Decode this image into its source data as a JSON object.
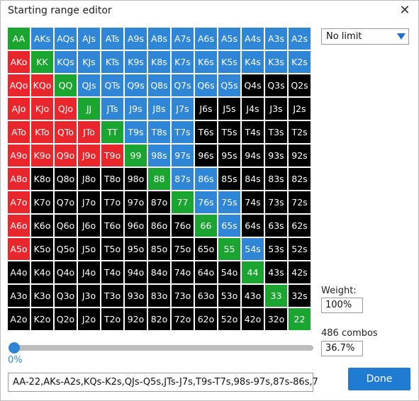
{
  "window": {
    "title": "Starting range editor"
  },
  "grid": {
    "rows": [
      [
        "AA",
        "AKs",
        "AQs",
        "AJs",
        "ATs",
        "A9s",
        "A8s",
        "A7s",
        "A6s",
        "A5s",
        "A4s",
        "A3s",
        "A2s"
      ],
      [
        "AKo",
        "KK",
        "KQs",
        "KJs",
        "KTs",
        "K9s",
        "K8s",
        "K7s",
        "K6s",
        "K5s",
        "K4s",
        "K3s",
        "K2s"
      ],
      [
        "AQo",
        "KQo",
        "QQ",
        "QJs",
        "QTs",
        "Q9s",
        "Q8s",
        "Q7s",
        "Q6s",
        "Q5s",
        "Q4s",
        "Q3s",
        "Q2s"
      ],
      [
        "AJo",
        "KJo",
        "QJo",
        "JJ",
        "JTs",
        "J9s",
        "J8s",
        "J7s",
        "J6s",
        "J5s",
        "J4s",
        "J3s",
        "J2s"
      ],
      [
        "ATo",
        "KTo",
        "QTo",
        "JTo",
        "TT",
        "T9s",
        "T8s",
        "T7s",
        "T6s",
        "T5s",
        "T4s",
        "T3s",
        "T2s"
      ],
      [
        "A9o",
        "K9o",
        "Q9o",
        "J9o",
        "T9o",
        "99",
        "98s",
        "97s",
        "96s",
        "95s",
        "94s",
        "93s",
        "92s"
      ],
      [
        "A8o",
        "K8o",
        "Q8o",
        "J8o",
        "T8o",
        "98o",
        "88",
        "87s",
        "86s",
        "85s",
        "84s",
        "83s",
        "82s"
      ],
      [
        "A7o",
        "K7o",
        "Q7o",
        "J7o",
        "T7o",
        "97o",
        "87o",
        "77",
        "76s",
        "75s",
        "74s",
        "73s",
        "72s"
      ],
      [
        "A6o",
        "K6o",
        "Q6o",
        "J6o",
        "T6o",
        "96o",
        "86o",
        "76o",
        "66",
        "65s",
        "64s",
        "63s",
        "62s"
      ],
      [
        "A5o",
        "K5o",
        "Q5o",
        "J5o",
        "T5o",
        "95o",
        "85o",
        "75o",
        "65o",
        "55",
        "54s",
        "53s",
        "52s"
      ],
      [
        "A4o",
        "K4o",
        "Q4o",
        "J4o",
        "T4o",
        "94o",
        "84o",
        "74o",
        "64o",
        "54o",
        "44",
        "43s",
        "42s"
      ],
      [
        "A3o",
        "K3o",
        "Q3o",
        "J3o",
        "T3o",
        "93o",
        "83o",
        "73o",
        "63o",
        "53o",
        "43o",
        "33",
        "32s"
      ],
      [
        "A2o",
        "K2o",
        "Q2o",
        "J2o",
        "T2o",
        "92o",
        "82o",
        "72o",
        "62o",
        "52o",
        "42o",
        "32o",
        "22"
      ]
    ],
    "colors": [
      [
        "g",
        "b",
        "b",
        "b",
        "b",
        "b",
        "b",
        "b",
        "b",
        "b",
        "b",
        "b",
        "b"
      ],
      [
        "r",
        "g",
        "b",
        "b",
        "b",
        "b",
        "b",
        "b",
        "b",
        "b",
        "b",
        "b",
        "b"
      ],
      [
        "r",
        "r",
        "g",
        "b",
        "b",
        "b",
        "b",
        "b",
        "b",
        "b",
        "k",
        "k",
        "k"
      ],
      [
        "r",
        "r",
        "r",
        "g",
        "b",
        "b",
        "b",
        "b",
        "k",
        "k",
        "k",
        "k",
        "k"
      ],
      [
        "r",
        "r",
        "r",
        "r",
        "g",
        "b",
        "b",
        "b",
        "k",
        "k",
        "k",
        "k",
        "k"
      ],
      [
        "r",
        "r",
        "r",
        "r",
        "r",
        "g",
        "b",
        "b",
        "k",
        "k",
        "k",
        "k",
        "k"
      ],
      [
        "r",
        "k",
        "k",
        "k",
        "k",
        "k",
        "g",
        "b",
        "b",
        "k",
        "k",
        "k",
        "k"
      ],
      [
        "r",
        "k",
        "k",
        "k",
        "k",
        "k",
        "k",
        "g",
        "b",
        "b",
        "k",
        "k",
        "k"
      ],
      [
        "r",
        "k",
        "k",
        "k",
        "k",
        "k",
        "k",
        "k",
        "g",
        "b",
        "k",
        "k",
        "k"
      ],
      [
        "r",
        "k",
        "k",
        "k",
        "k",
        "k",
        "k",
        "k",
        "k",
        "g",
        "b",
        "k",
        "k"
      ],
      [
        "k",
        "k",
        "k",
        "k",
        "k",
        "k",
        "k",
        "k",
        "k",
        "k",
        "g",
        "k",
        "k"
      ],
      [
        "k",
        "k",
        "k",
        "k",
        "k",
        "k",
        "k",
        "k",
        "k",
        "k",
        "k",
        "g",
        "k"
      ],
      [
        "k",
        "k",
        "k",
        "k",
        "k",
        "k",
        "k",
        "k",
        "k",
        "k",
        "k",
        "k",
        "g"
      ]
    ],
    "palette": {
      "g": "#1aa531",
      "b": "#2f86d6",
      "r": "#e8262c",
      "k": "#000000"
    }
  },
  "limit_select": {
    "value": "No limit"
  },
  "weight": {
    "label": "Weight:",
    "value": "100%"
  },
  "combos": {
    "label": "486 combos",
    "percent": "36.7%"
  },
  "slider": {
    "value_label": "0%",
    "value": 0
  },
  "range_text": "AA-22,AKs-A2s,KQs-K2s,QJs-Q5s,JTs-J7s,T9s-T7s,98s-97s,87s-86s,7",
  "buttons": {
    "done": "Done",
    "close_icon": "close-icon"
  }
}
